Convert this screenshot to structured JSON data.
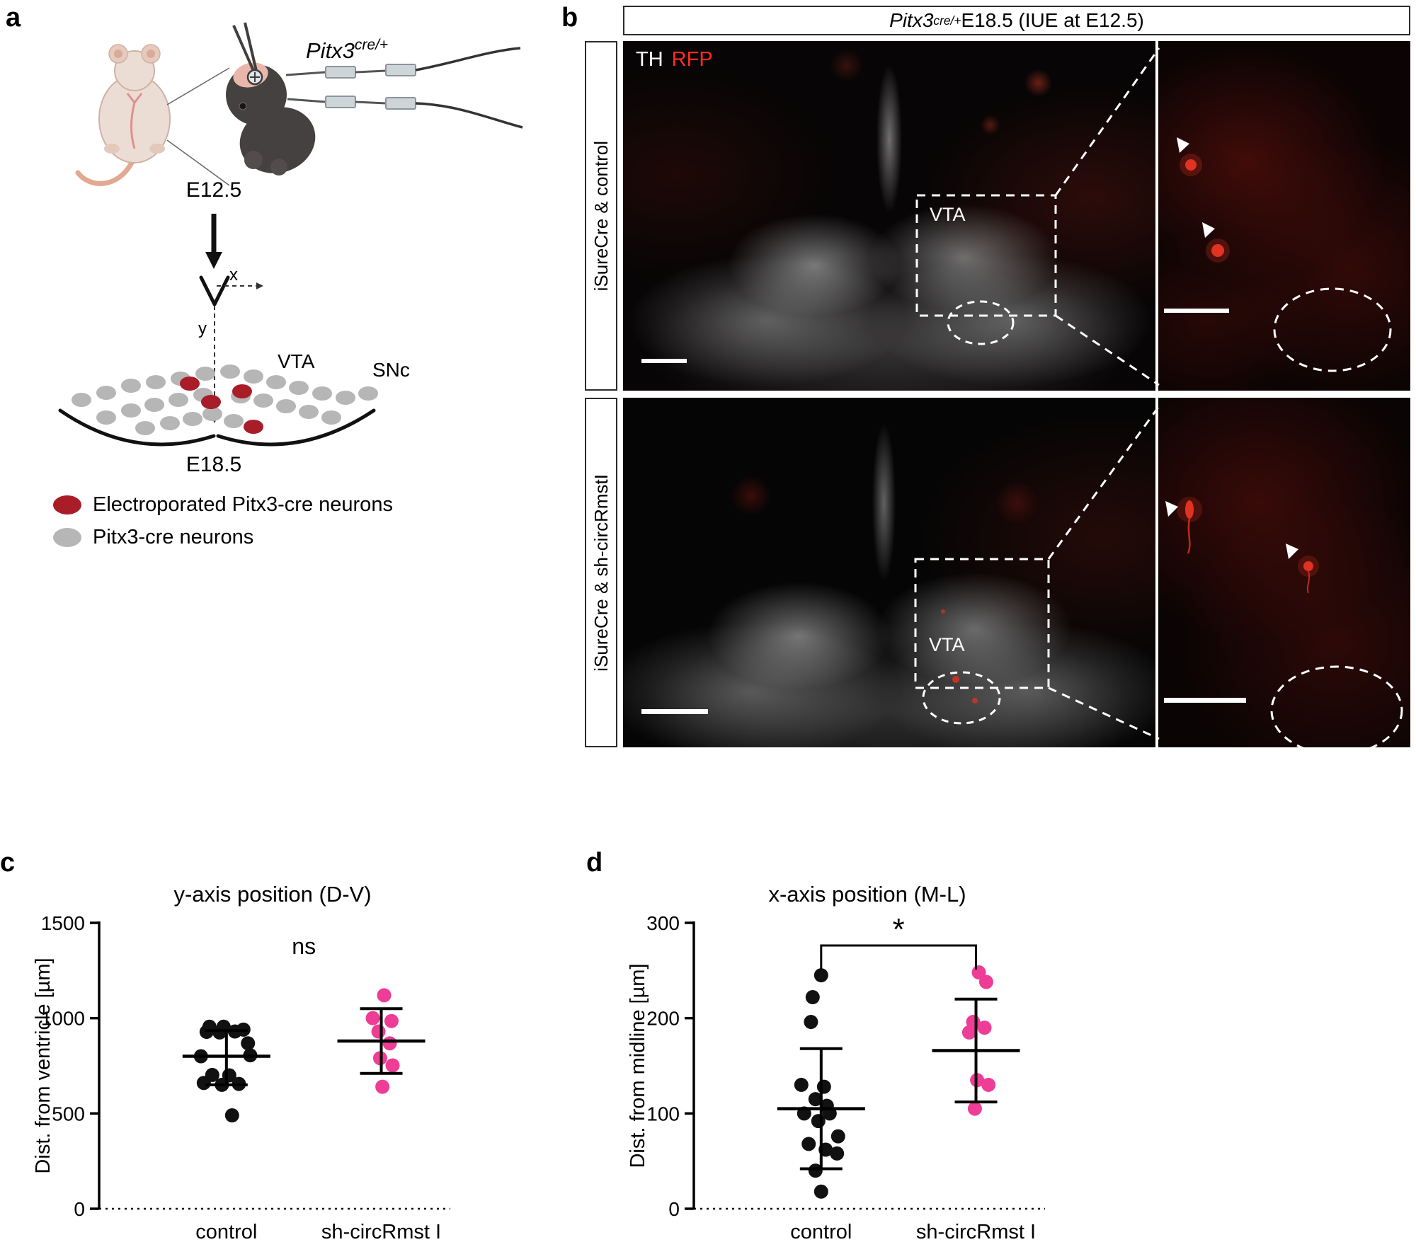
{
  "panel_a": {
    "label": "a",
    "genotype_base": "Pitx3",
    "genotype_sup": "cre/+",
    "stage_injection": "E12.5",
    "axis_x_label": "x",
    "axis_y_label": "y",
    "vta_label": "VTA",
    "snc_label": "SNc",
    "stage_analysis": "E18.5",
    "legend": [
      {
        "label": "Electroporated Pitx3-cre neurons",
        "color": "#a91d28"
      },
      {
        "label": "Pitx3-cre neurons",
        "color": "#b6b6b6"
      }
    ]
  },
  "panel_b": {
    "label": "b",
    "header_italic": "Pitx3",
    "header_sup": "cre/+",
    "header_rest": " E18.5 (IUE at E12.5)",
    "stain_th": "TH",
    "stain_rfp": "RFP",
    "th_color": "#ffffff",
    "rfp_color": "#ff2d1e",
    "rows": [
      {
        "side_label": "iSureCre & control",
        "region_label": "VTA"
      },
      {
        "side_label": "iSureCre & sh-circRmstI",
        "region_label": "VTA"
      }
    ]
  },
  "panel_c": {
    "label": "c"
  },
  "panel_d": {
    "label": "d"
  },
  "chart_data": [
    {
      "id": "c",
      "type": "scatter",
      "title": "y-axis position (D-V)",
      "ylabel": "Dist. from ventricle [µm]",
      "ylim": [
        0,
        1500
      ],
      "yticks": [
        0,
        500,
        1000,
        1500
      ],
      "categories": [
        "control",
        "sh-circRmst I"
      ],
      "annotation": {
        "text": "ns",
        "bracket": false
      },
      "series": [
        {
          "name": "control",
          "color": "#111111",
          "mean": 800,
          "sd_low": 650,
          "sd_high": 935,
          "points": [
            {
              "dx": -0.3,
              "y": 955
            },
            {
              "dx": -0.05,
              "y": 955
            },
            {
              "dx": 0.3,
              "y": 940
            },
            {
              "dx": -0.35,
              "y": 928
            },
            {
              "dx": -0.12,
              "y": 925
            },
            {
              "dx": 0.15,
              "y": 930
            },
            {
              "dx": 0.38,
              "y": 868
            },
            {
              "dx": -0.45,
              "y": 800
            },
            {
              "dx": 0.42,
              "y": 805
            },
            {
              "dx": -0.25,
              "y": 702
            },
            {
              "dx": 0.05,
              "y": 700
            },
            {
              "dx": -0.4,
              "y": 660
            },
            {
              "dx": -0.08,
              "y": 650
            },
            {
              "dx": 0.22,
              "y": 655
            },
            {
              "dx": 0.1,
              "y": 490
            }
          ]
        },
        {
          "name": "sh-circRmst I",
          "color": "#ee3d96",
          "mean": 880,
          "sd_low": 710,
          "sd_high": 1050,
          "points": [
            {
              "dx": 0.05,
              "y": 1120
            },
            {
              "dx": -0.15,
              "y": 1000
            },
            {
              "dx": 0.18,
              "y": 985
            },
            {
              "dx": -0.05,
              "y": 930
            },
            {
              "dx": 0.15,
              "y": 868
            },
            {
              "dx": -0.02,
              "y": 790
            },
            {
              "dx": 0.2,
              "y": 752
            },
            {
              "dx": 0.02,
              "y": 640
            }
          ]
        }
      ]
    },
    {
      "id": "d",
      "type": "scatter",
      "title": "x-axis position (M-L)",
      "ylabel": "Dist. from midline [µm]",
      "ylim": [
        0,
        300
      ],
      "yticks": [
        0,
        100,
        200,
        300
      ],
      "categories": [
        "control",
        "sh-circRmst I"
      ],
      "annotation": {
        "text": "*",
        "bracket": true
      },
      "series": [
        {
          "name": "control",
          "color": "#111111",
          "mean": 105,
          "sd_low": 42,
          "sd_high": 168,
          "points": [
            {
              "dx": 0.0,
              "y": 245
            },
            {
              "dx": -0.15,
              "y": 222
            },
            {
              "dx": -0.18,
              "y": 196
            },
            {
              "dx": -0.35,
              "y": 130
            },
            {
              "dx": 0.05,
              "y": 128
            },
            {
              "dx": -0.1,
              "y": 115
            },
            {
              "dx": 0.1,
              "y": 108
            },
            {
              "dx": -0.3,
              "y": 100
            },
            {
              "dx": 0.15,
              "y": 100
            },
            {
              "dx": -0.05,
              "y": 92
            },
            {
              "dx": 0.3,
              "y": 76
            },
            {
              "dx": -0.22,
              "y": 68
            },
            {
              "dx": 0.08,
              "y": 62
            },
            {
              "dx": 0.28,
              "y": 58
            },
            {
              "dx": -0.1,
              "y": 40
            },
            {
              "dx": 0.0,
              "y": 18
            }
          ]
        },
        {
          "name": "sh-circRmst I",
          "color": "#ee3d96",
          "mean": 166,
          "sd_low": 112,
          "sd_high": 220,
          "points": [
            {
              "dx": 0.05,
              "y": 248
            },
            {
              "dx": 0.18,
              "y": 238
            },
            {
              "dx": -0.05,
              "y": 196
            },
            {
              "dx": 0.15,
              "y": 190
            },
            {
              "dx": -0.12,
              "y": 185
            },
            {
              "dx": 0.02,
              "y": 135
            },
            {
              "dx": 0.22,
              "y": 130
            },
            {
              "dx": -0.02,
              "y": 105
            }
          ]
        }
      ]
    }
  ]
}
